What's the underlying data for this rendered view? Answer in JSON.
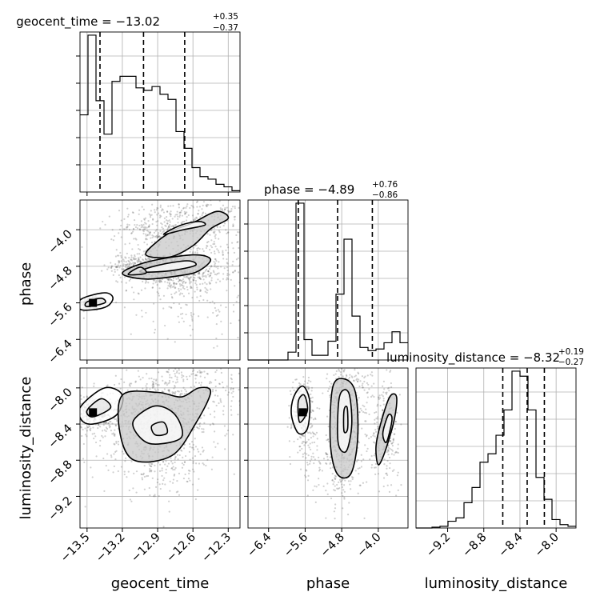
{
  "chart_data": {
    "type": "corner",
    "parameters": [
      "geocent_time",
      "phase",
      "luminosity_distance"
    ],
    "grid": true,
    "titles": [
      {
        "param": "geocent_time",
        "median": "−13.02",
        "plus": "+0.35",
        "minus": "−0.37"
      },
      {
        "param": "phase",
        "median": "−4.89",
        "plus": "+0.76",
        "minus": "−0.86"
      },
      {
        "param": "luminosity_distance",
        "median": "−8.32",
        "plus": "+0.19",
        "minus": "−0.27"
      }
    ],
    "axes": {
      "geocent_time": {
        "range": [
          -13.56,
          -12.2
        ],
        "ticks": [
          -13.5,
          -13.2,
          -12.9,
          -12.6,
          -12.3
        ],
        "tick_labels": [
          "−13.5",
          "−13.2",
          "−12.9",
          "−12.6",
          "−12.3"
        ]
      },
      "phase": {
        "range": [
          -6.85,
          -3.35
        ],
        "ticks": [
          -6.4,
          -5.6,
          -4.8,
          -4.0
        ],
        "tick_labels": [
          "−6.4",
          "−5.6",
          "−4.8",
          "−4.0"
        ]
      },
      "luminosity_distance": {
        "range": [
          -9.55,
          -7.78
        ],
        "ticks": [
          -9.2,
          -8.8,
          -8.4,
          -8.0
        ],
        "tick_labels": [
          "−9.2",
          "−8.8",
          "−8.4",
          "−8.0"
        ]
      }
    },
    "histograms": [
      {
        "param": "geocent_time",
        "edges": [
          -13.56,
          -13.492,
          -13.424,
          -13.356,
          -13.288,
          -13.22,
          -13.152,
          -13.084,
          -13.016,
          -12.948,
          -12.88,
          -12.812,
          -12.744,
          -12.676,
          -12.608,
          -12.54,
          -12.472,
          -12.404,
          -12.336,
          -12.268,
          -12.2
        ],
        "counts": [
          0.6,
          1.22,
          0.71,
          0.45,
          0.86,
          0.9,
          0.9,
          0.81,
          0.79,
          0.82,
          0.76,
          0.72,
          0.47,
          0.34,
          0.19,
          0.12,
          0.1,
          0.06,
          0.04,
          0.01
        ],
        "quantiles": [
          -13.39,
          -13.02,
          -12.67
        ]
      },
      {
        "param": "phase",
        "edges": [
          -6.85,
          -6.675,
          -6.5,
          -6.325,
          -6.15,
          -5.975,
          -5.8,
          -5.625,
          -5.45,
          -5.275,
          -5.1,
          -4.925,
          -4.75,
          -4.575,
          -4.4,
          -4.225,
          -4.05,
          -3.875,
          -3.7,
          -3.525,
          -3.35
        ],
        "counts": [
          0,
          0,
          0,
          0,
          0,
          0.05,
          1.0,
          0.13,
          0.03,
          0.03,
          0.12,
          0.42,
          0.77,
          0.28,
          0.08,
          0.06,
          0.07,
          0.11,
          0.18,
          0.11
        ],
        "quantiles": [
          -5.75,
          -4.89,
          -4.13
        ]
      },
      {
        "param": "luminosity_distance",
        "edges": [
          -9.55,
          -9.4615,
          -9.373,
          -9.2845,
          -9.196,
          -9.1075,
          -9.019,
          -8.9305,
          -8.842,
          -8.7535,
          -8.665,
          -8.5765,
          -8.488,
          -8.3995,
          -8.311,
          -8.2225,
          -8.134,
          -8.0455,
          -7.957,
          -7.8685,
          -7.78
        ],
        "counts": [
          0,
          0,
          0.005,
          0.01,
          0.04,
          0.06,
          0.15,
          0.24,
          0.39,
          0.44,
          0.55,
          0.7,
          0.93,
          0.9,
          0.7,
          0.3,
          0.17,
          0.05,
          0.02,
          0.01
        ],
        "quantiles": [
          -8.59,
          -8.32,
          -8.13
        ]
      }
    ],
    "scatter_cloud": [
      {
        "x": "geocent_time",
        "y": "phase",
        "blobs": [
          [
            -13.45,
            -5.6,
            0.05,
            0.08,
            260
          ],
          [
            -13.0,
            -4.78,
            0.14,
            0.12,
            300
          ],
          [
            -12.75,
            -4.95,
            0.2,
            0.2,
            420
          ],
          [
            -12.55,
            -4.45,
            0.25,
            0.4,
            260
          ],
          [
            -12.9,
            -4.0,
            0.2,
            0.18,
            200
          ],
          [
            -12.5,
            -3.6,
            0.3,
            0.2,
            200
          ],
          [
            -12.6,
            -5.6,
            0.3,
            0.4,
            120
          ]
        ]
      },
      {
        "x": "geocent_time",
        "y": "luminosity_distance",
        "blobs": [
          [
            -13.45,
            -8.27,
            0.08,
            0.1,
            320
          ],
          [
            -13.05,
            -8.35,
            0.18,
            0.25,
            420
          ],
          [
            -12.75,
            -8.3,
            0.2,
            0.3,
            380
          ],
          [
            -12.5,
            -8.0,
            0.25,
            0.25,
            200
          ],
          [
            -12.9,
            -8.85,
            0.25,
            0.2,
            160
          ]
        ]
      },
      {
        "x": "phase",
        "y": "luminosity_distance",
        "blobs": [
          [
            -5.65,
            -8.27,
            0.12,
            0.2,
            300
          ],
          [
            -4.75,
            -8.4,
            0.15,
            0.35,
            460
          ],
          [
            -4.6,
            -8.1,
            0.3,
            0.35,
            200
          ],
          [
            -3.85,
            -8.45,
            0.15,
            0.25,
            260
          ],
          [
            -5.0,
            -8.9,
            0.35,
            0.2,
            120
          ]
        ]
      }
    ],
    "contours": [
      {
        "x": "geocent_time",
        "y": "phase",
        "levels": [
          [
            [
              -13.55,
              -5.52
            ],
            [
              -13.35,
              -5.38
            ],
            [
              -13.28,
              -5.5
            ],
            [
              -13.35,
              -5.7
            ],
            [
              -13.55,
              -5.75
            ]
          ],
          [
            [
              -13.5,
              -5.58
            ],
            [
              -13.38,
              -5.5
            ],
            [
              -13.35,
              -5.6
            ],
            [
              -13.5,
              -5.68
            ]
          ],
          [
            [
              -13.2,
              -4.95
            ],
            [
              -12.98,
              -4.7
            ],
            [
              -12.6,
              -4.55
            ],
            [
              -12.45,
              -4.65
            ],
            [
              -12.55,
              -4.9
            ],
            [
              -12.7,
              -5.0
            ],
            [
              -13.0,
              -5.08
            ]
          ],
          [
            [
              -13.05,
              -4.92
            ],
            [
              -12.9,
              -4.78
            ],
            [
              -12.65,
              -4.68
            ],
            [
              -12.58,
              -4.78
            ],
            [
              -12.8,
              -4.9
            ]
          ],
          [
            [
              -13.15,
              -4.98
            ],
            [
              -13.05,
              -4.82
            ],
            [
              -13.0,
              -4.95
            ]
          ],
          [
            [
              -13.0,
              -4.55
            ],
            [
              -12.9,
              -4.25
            ],
            [
              -12.75,
              -4.0
            ],
            [
              -12.6,
              -3.85
            ],
            [
              -12.4,
              -3.6
            ],
            [
              -12.3,
              -3.75
            ],
            [
              -12.45,
              -3.98
            ],
            [
              -12.6,
              -4.35
            ],
            [
              -12.8,
              -4.6
            ]
          ],
          [
            [
              -12.85,
              -4.1
            ],
            [
              -12.7,
              -3.9
            ],
            [
              -12.55,
              -3.82
            ],
            [
              -12.5,
              -3.9
            ],
            [
              -12.68,
              -4.0
            ]
          ]
        ]
      },
      {
        "x": "geocent_time",
        "y": "luminosity_distance",
        "levels": [
          [
            [
              -13.55,
              -8.2
            ],
            [
              -13.35,
              -8.0
            ],
            [
              -13.2,
              -8.08
            ],
            [
              -13.25,
              -8.3
            ],
            [
              -13.45,
              -8.4
            ],
            [
              -13.55,
              -8.35
            ]
          ],
          [
            [
              -13.5,
              -8.25
            ],
            [
              -13.38,
              -8.12
            ],
            [
              -13.3,
              -8.22
            ],
            [
              -13.45,
              -8.32
            ]
          ],
          [
            [
              -13.2,
              -8.08
            ],
            [
              -12.9,
              -8.05
            ],
            [
              -12.7,
              -8.1
            ],
            [
              -12.55,
              -8.0
            ],
            [
              -12.45,
              -8.05
            ],
            [
              -12.58,
              -8.4
            ],
            [
              -12.78,
              -8.75
            ],
            [
              -13.1,
              -8.8
            ],
            [
              -13.22,
              -8.5
            ]
          ],
          [
            [
              -13.1,
              -8.35
            ],
            [
              -12.92,
              -8.2
            ],
            [
              -12.75,
              -8.3
            ],
            [
              -12.7,
              -8.55
            ],
            [
              -12.95,
              -8.62
            ],
            [
              -13.08,
              -8.5
            ]
          ],
          [
            [
              -12.95,
              -8.42
            ],
            [
              -12.85,
              -8.38
            ],
            [
              -12.82,
              -8.5
            ],
            [
              -12.92,
              -8.52
            ]
          ]
        ]
      },
      {
        "x": "phase",
        "y": "luminosity_distance",
        "levels": [
          [
            [
              -5.85,
              -8.1
            ],
            [
              -5.65,
              -7.98
            ],
            [
              -5.5,
              -8.15
            ],
            [
              -5.55,
              -8.45
            ],
            [
              -5.75,
              -8.5
            ],
            [
              -5.9,
              -8.3
            ]
          ],
          [
            [
              -5.75,
              -8.15
            ],
            [
              -5.62,
              -8.08
            ],
            [
              -5.55,
              -8.25
            ],
            [
              -5.72,
              -8.38
            ]
          ],
          [
            [
              -5.0,
              -8.0
            ],
            [
              -4.75,
              -7.9
            ],
            [
              -4.5,
              -8.05
            ],
            [
              -4.45,
              -8.55
            ],
            [
              -4.6,
              -8.95
            ],
            [
              -4.9,
              -8.95
            ],
            [
              -5.05,
              -8.6
            ]
          ],
          [
            [
              -4.85,
              -8.1
            ],
            [
              -4.65,
              -8.05
            ],
            [
              -4.58,
              -8.4
            ],
            [
              -4.7,
              -8.7
            ],
            [
              -4.88,
              -8.6
            ]
          ],
          [
            [
              -4.75,
              -8.25
            ],
            [
              -4.68,
              -8.22
            ],
            [
              -4.67,
              -8.45
            ],
            [
              -4.75,
              -8.48
            ]
          ],
          [
            [
              -4.05,
              -8.65
            ],
            [
              -3.95,
              -8.4
            ],
            [
              -3.75,
              -8.1
            ],
            [
              -3.6,
              -8.1
            ],
            [
              -3.65,
              -8.35
            ],
            [
              -3.85,
              -8.7
            ],
            [
              -4.0,
              -8.85
            ]
          ],
          [
            [
              -3.9,
              -8.5
            ],
            [
              -3.78,
              -8.3
            ],
            [
              -3.7,
              -8.35
            ],
            [
              -3.82,
              -8.6
            ]
          ]
        ]
      }
    ],
    "peaks": [
      {
        "x": "geocent_time",
        "y": "phase",
        "at": [
          -13.45,
          -5.6
        ]
      },
      {
        "x": "geocent_time",
        "y": "luminosity_distance",
        "at": [
          -13.45,
          -8.27
        ]
      },
      {
        "x": "phase",
        "y": "luminosity_distance",
        "at": [
          -5.65,
          -8.27
        ]
      }
    ]
  }
}
